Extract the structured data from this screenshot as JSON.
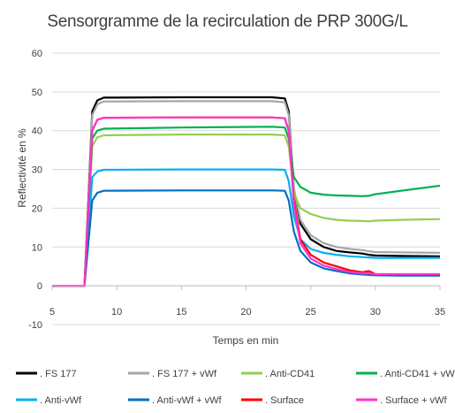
{
  "chart_data": {
    "type": "line",
    "title": "Sensorgramme de la recirculation de PRP 300G/L",
    "xlabel": "Temps en min",
    "ylabel": "Reflectivité en %",
    "xlim": [
      5,
      35
    ],
    "ylim": [
      -10,
      60
    ],
    "xticks": [
      5,
      10,
      15,
      20,
      25,
      30,
      35
    ],
    "yticks": [
      -10,
      0,
      10,
      20,
      30,
      40,
      50,
      60
    ],
    "grid": "horizontal",
    "legend_position": "bottom",
    "x": [
      5,
      7.5,
      7.8,
      8.1,
      8.5,
      9,
      15,
      22,
      23,
      23.3,
      23.7,
      24.2,
      25,
      26,
      27,
      28,
      29,
      29.5,
      30,
      32,
      35
    ],
    "series": [
      {
        "name": ". FS 177",
        "color": "#000000",
        "values": [
          0,
          0,
          22,
          45,
          47.8,
          48.5,
          48.6,
          48.6,
          48.3,
          45,
          25,
          16,
          12,
          10,
          9,
          8.6,
          8.3,
          8,
          7.8,
          7.7,
          7.6
        ]
      },
      {
        "name": ". FS 177 + vWf",
        "color": "#a6a6a6",
        "values": [
          0,
          0,
          21,
          44,
          46.8,
          47.5,
          47.6,
          47.6,
          47.3,
          44,
          25,
          17,
          13,
          11,
          10,
          9.5,
          9.2,
          8.9,
          8.7,
          8.6,
          8.5
        ]
      },
      {
        "name": ". Anti-CD41",
        "color": "#92d050",
        "values": [
          0,
          0,
          18,
          36,
          38.3,
          38.8,
          39,
          39,
          38.8,
          36,
          24,
          20,
          18.5,
          17.5,
          17,
          16.8,
          16.7,
          16.6,
          16.8,
          17,
          17.2
        ]
      },
      {
        "name": ". Anti-CD41 + vWf",
        "color": "#00b050",
        "values": [
          0,
          0,
          19,
          38,
          40,
          40.5,
          40.8,
          41,
          40.8,
          38,
          28,
          25.5,
          24,
          23.5,
          23.3,
          23.2,
          23.1,
          23.2,
          23.6,
          24.5,
          25.8
        ]
      },
      {
        "name": ". Anti-vWf",
        "color": "#00b0f0",
        "values": [
          0,
          0,
          14,
          28,
          29.5,
          29.9,
          30,
          30,
          29.9,
          27,
          18,
          12,
          9.5,
          8.5,
          8,
          7.6,
          7.4,
          7.3,
          7.2,
          7.2,
          7.2
        ]
      },
      {
        "name": ". Anti-vWf + vWf",
        "color": "#0070c0",
        "values": [
          0,
          0,
          11,
          22,
          24,
          24.5,
          24.6,
          24.6,
          24.5,
          22,
          14,
          9,
          6,
          4.5,
          3.8,
          3.2,
          2.9,
          2.8,
          2.7,
          2.6,
          2.6
        ]
      },
      {
        "name": ". Surface",
        "color": "#ff0000",
        "values": [
          0,
          0,
          20,
          40,
          42.8,
          43.3,
          43.4,
          43.4,
          43.2,
          40,
          22,
          12,
          8,
          6,
          5,
          4,
          3.5,
          3.8,
          3,
          2.9,
          2.8
        ]
      },
      {
        "name": ". Surface + vWf",
        "color": "#ff33cc",
        "values": [
          0,
          0,
          20,
          40,
          42.8,
          43.3,
          43.4,
          43.4,
          43.2,
          40,
          21,
          11,
          7,
          5.2,
          4.3,
          3.6,
          3.2,
          3.2,
          3,
          3,
          3
        ]
      }
    ]
  }
}
